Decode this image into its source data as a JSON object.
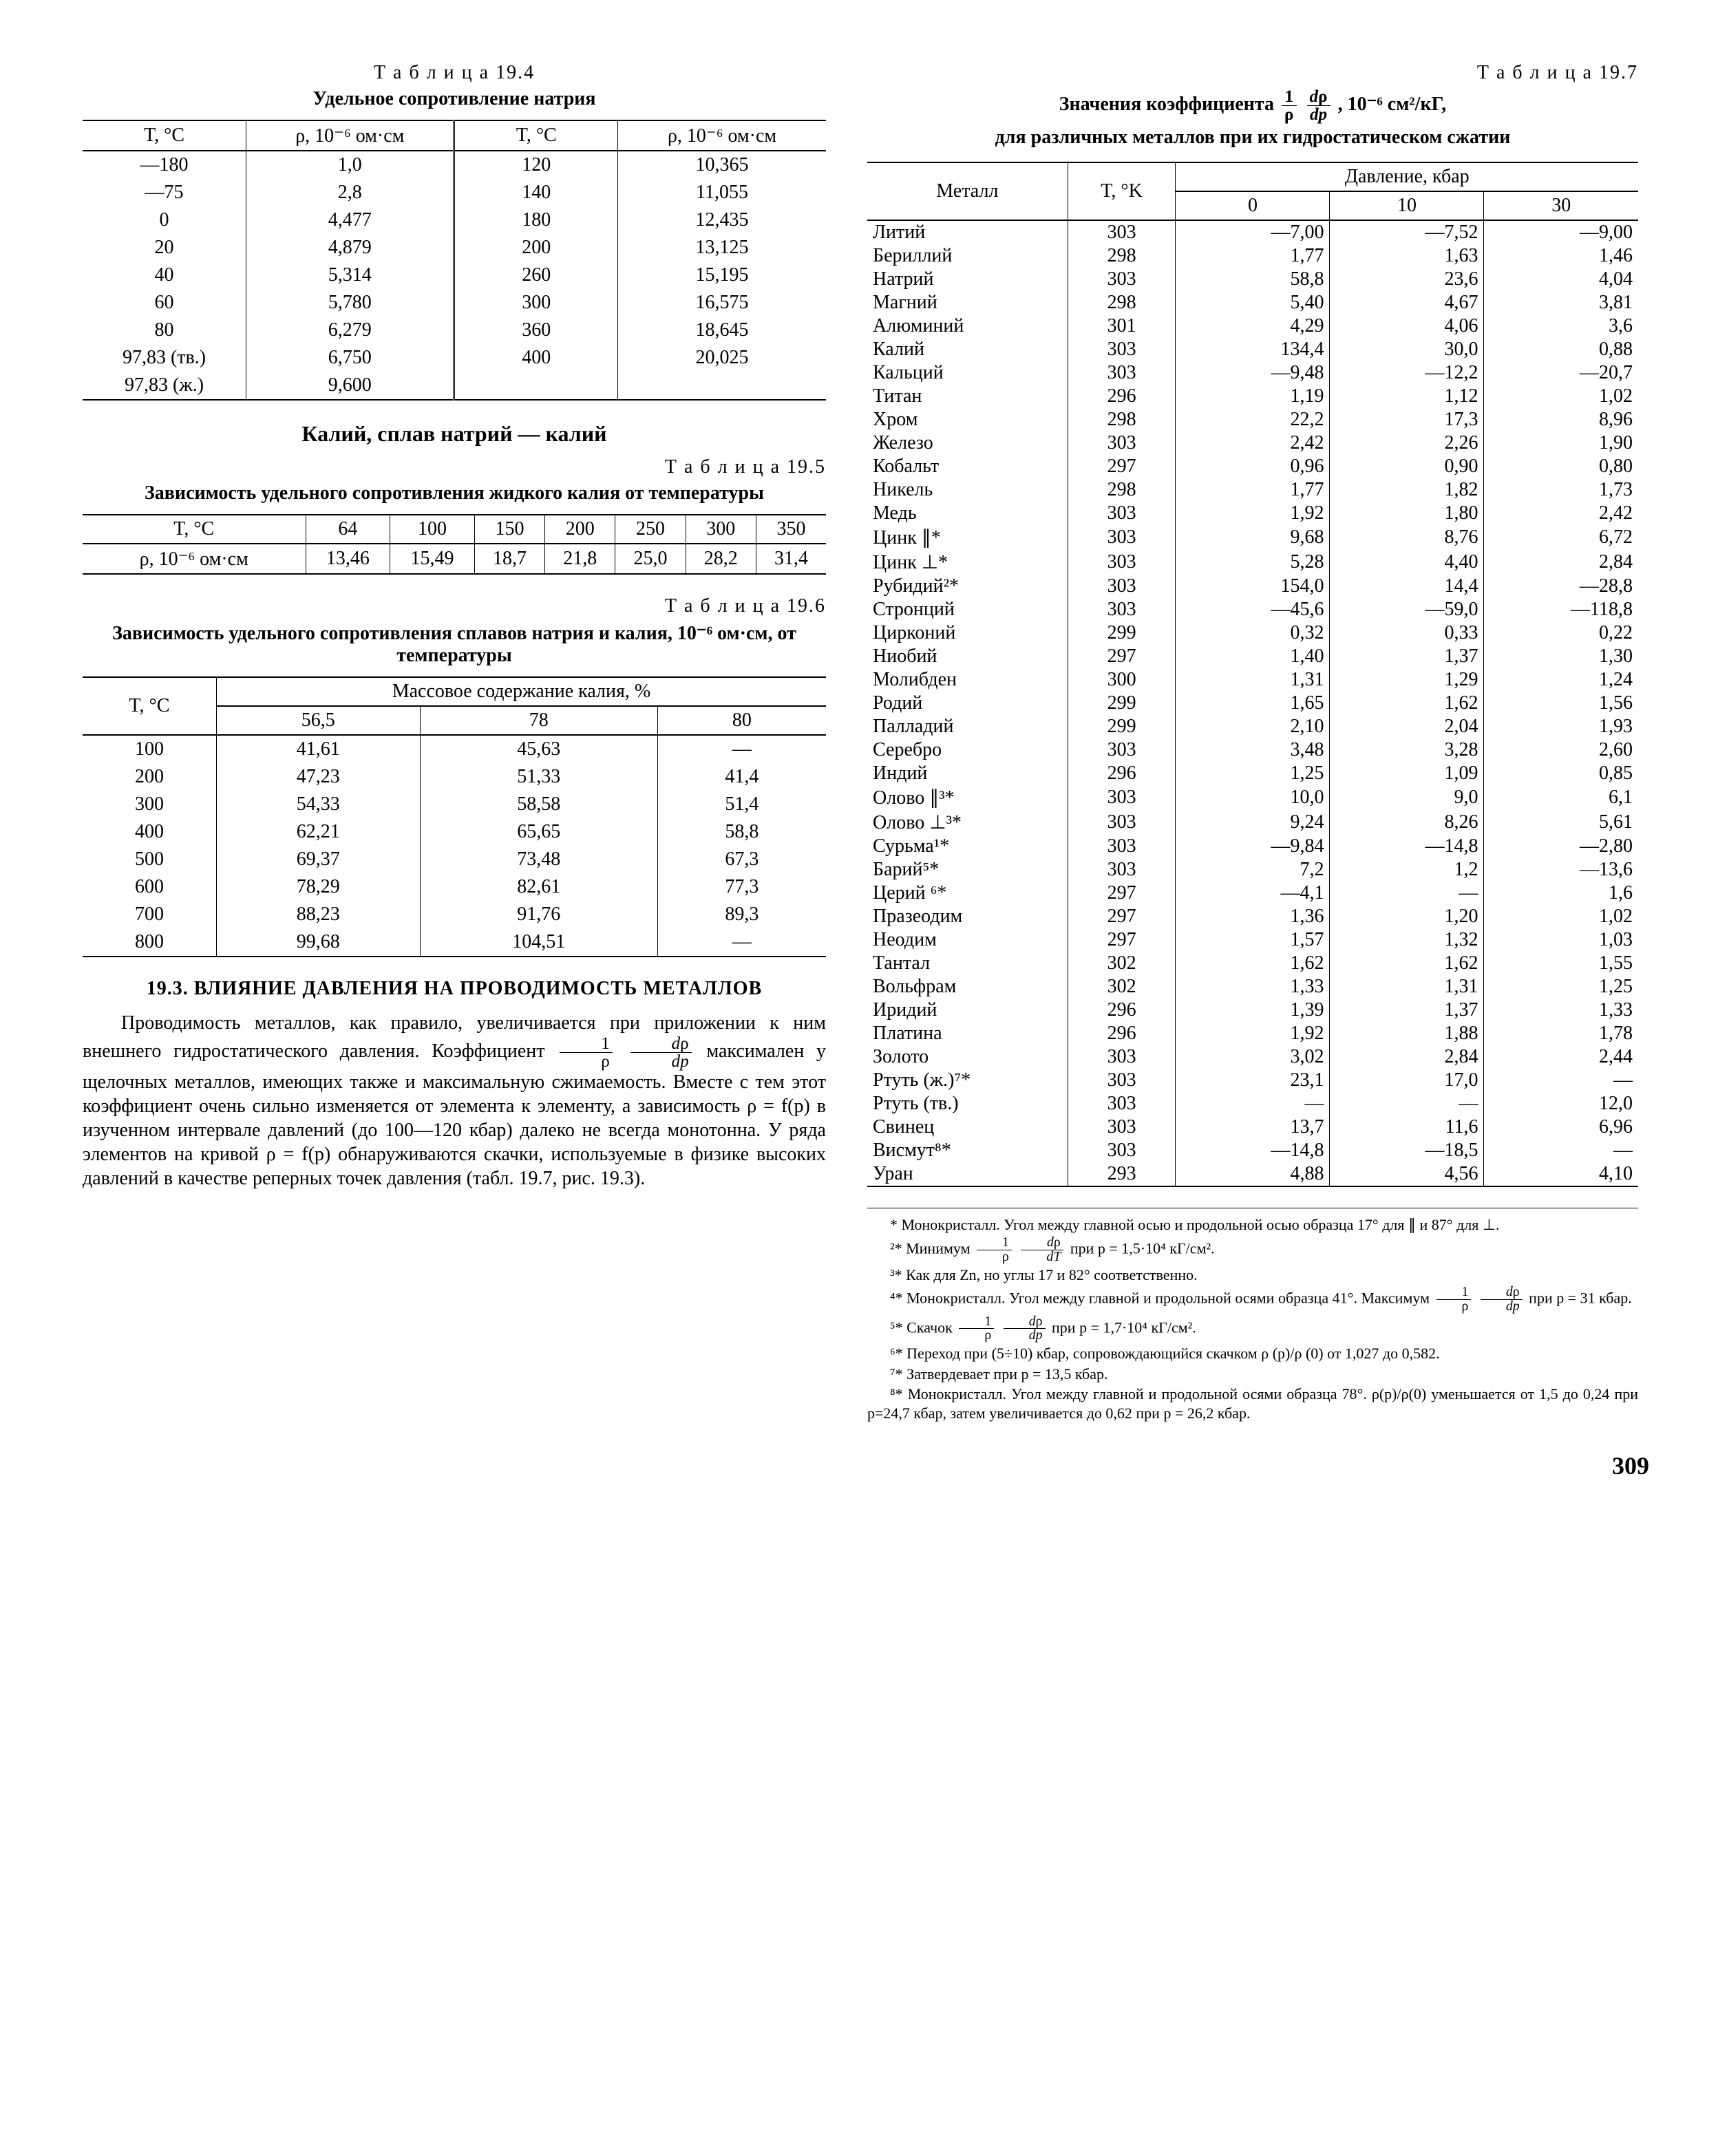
{
  "page_number": "309",
  "left": {
    "t194": {
      "label": "Т а б л и ц а  19.4",
      "title": "Удельное сопротивление натрия",
      "head": [
        "T, °C",
        "ρ, 10⁻⁶ ом·см",
        "T, °C",
        "ρ, 10⁻⁶ ом·см"
      ],
      "rows": [
        [
          "—180",
          "1,0",
          "120",
          "10,365"
        ],
        [
          "—75",
          "2,8",
          "140",
          "11,055"
        ],
        [
          "0",
          "4,477",
          "180",
          "12,435"
        ],
        [
          "20",
          "4,879",
          "200",
          "13,125"
        ],
        [
          "40",
          "5,314",
          "260",
          "15,195"
        ],
        [
          "60",
          "5,780",
          "300",
          "16,575"
        ],
        [
          "80",
          "6,279",
          "360",
          "18,645"
        ],
        [
          "97,83 (тв.)",
          "6,750",
          "400",
          "20,025"
        ],
        [
          "97,83 (ж.)",
          "9,600",
          "",
          ""
        ]
      ]
    },
    "subhead": "Калий, сплав натрий — калий",
    "t195": {
      "label": "Т а б л и ц а  19.5",
      "title": "Зависимость удельного сопротивления жидкого калия от температуры",
      "row_label": "T, °C",
      "row2_label": "ρ, 10⁻⁶ ом·см",
      "cols": [
        "64",
        "100",
        "150",
        "200",
        "250",
        "300",
        "350"
      ],
      "vals": [
        "13,46",
        "15,49",
        "18,7",
        "21,8",
        "25,0",
        "28,2",
        "31,4"
      ]
    },
    "t196": {
      "label": "Т а б л и ц а  19.6",
      "title": "Зависимость удельного сопротивления сплавов натрия и калия, 10⁻⁶ ом·см, от температуры",
      "group_head": "Массовое содержание калия, %",
      "head": [
        "T, °C",
        "56,5",
        "78",
        "80"
      ],
      "rows": [
        [
          "100",
          "41,61",
          "45,63",
          "—"
        ],
        [
          "200",
          "47,23",
          "51,33",
          "41,4"
        ],
        [
          "300",
          "54,33",
          "58,58",
          "51,4"
        ],
        [
          "400",
          "62,21",
          "65,65",
          "58,8"
        ],
        [
          "500",
          "69,37",
          "73,48",
          "67,3"
        ],
        [
          "600",
          "78,29",
          "82,61",
          "77,3"
        ],
        [
          "700",
          "88,23",
          "91,76",
          "89,3"
        ],
        [
          "800",
          "99,68",
          "104,51",
          "—"
        ]
      ]
    },
    "section": {
      "title": "19.3. ВЛИЯНИЕ ДАВЛЕНИЯ НА ПРОВОДИМОСТЬ МЕТАЛЛОВ",
      "p1a": "Проводимость металлов, как правило, увеличивается при приложении к ним внешнего гидростатического дав­ления. Коэффициент ",
      "p1b": " максимален у щелочных ме­таллов, имеющих также и максимальную сжимаемость. Вместе с тем этот коэффициент очень сильно изменяет­ся от элемента к элементу, а зависимость ρ = f(p) в изученном интервале давлений (до 100—120 кбар) далеко не всегда монотонна. У ряда элементов на кри­вой ρ = f(p) обнаруживаются скачки, используемые в физике высоких давлений в качестве реперных точек давления (табл. 19.7, рис. 19.3)."
    }
  },
  "right": {
    "t197": {
      "label": "Т а б л и ц а  19.7",
      "title_a": "Значения коэффициента ",
      "title_b": ", 10⁻⁶ см²/кГ,",
      "title_c": "для различных металлов при их гидростатическом сжатии",
      "group_head": "Давление, кбар",
      "head": [
        "Металл",
        "T, °K",
        "0",
        "10",
        "30"
      ],
      "rows": [
        [
          "Литий",
          "303",
          "—7,00",
          "—7,52",
          "—9,00"
        ],
        [
          "Бериллий",
          "298",
          "1,77",
          "1,63",
          "1,46"
        ],
        [
          "Натрий",
          "303",
          "58,8",
          "23,6",
          "4,04"
        ],
        [
          "Магний",
          "298",
          "5,40",
          "4,67",
          "3,81"
        ],
        [
          "Алюминий",
          "301",
          "4,29",
          "4,06",
          "3,6"
        ],
        [
          "Калий",
          "303",
          "134,4",
          "30,0",
          "0,88"
        ],
        [
          "Кальций",
          "303",
          "—9,48",
          "—12,2",
          "—20,7"
        ],
        [
          "Титан",
          "296",
          "1,19",
          "1,12",
          "1,02"
        ],
        [
          "Хром",
          "298",
          "22,2",
          "17,3",
          "8,96"
        ],
        [
          "Железо",
          "303",
          "2,42",
          "2,26",
          "1,90"
        ],
        [
          "Кобальт",
          "297",
          "0,96",
          "0,90",
          "0,80"
        ],
        [
          "Никель",
          "298",
          "1,77",
          "1,82",
          "1,73"
        ],
        [
          "Медь",
          "303",
          "1,92",
          "1,80",
          "2,42"
        ],
        [
          "Цинк ∥*",
          "303",
          "9,68",
          "8,76",
          "6,72"
        ],
        [
          "Цинк ⊥*",
          "303",
          "5,28",
          "4,40",
          "2,84"
        ],
        [
          "Рубидий²*",
          "303",
          "154,0",
          "14,4",
          "—28,8"
        ],
        [
          "Стронций",
          "303",
          "—45,6",
          "—59,0",
          "—118,8"
        ],
        [
          "Цирконий",
          "299",
          "0,32",
          "0,33",
          "0,22"
        ],
        [
          "Ниобий",
          "297",
          "1,40",
          "1,37",
          "1,30"
        ],
        [
          "Молибден",
          "300",
          "1,31",
          "1,29",
          "1,24"
        ],
        [
          "Родий",
          "299",
          "1,65",
          "1,62",
          "1,56"
        ],
        [
          "Палладий",
          "299",
          "2,10",
          "2,04",
          "1,93"
        ],
        [
          "Серебро",
          "303",
          "3,48",
          "3,28",
          "2,60"
        ],
        [
          "Индий",
          "296",
          "1,25",
          "1,09",
          "0,85"
        ],
        [
          "Олово ∥³*",
          "303",
          "10,0",
          "9,0",
          "6,1"
        ],
        [
          "Олово ⊥³*",
          "303",
          "9,24",
          "8,26",
          "5,61"
        ],
        [
          "Сурьма¹*",
          "303",
          "—9,84",
          "—14,8",
          "—2,80"
        ],
        [
          "Барий⁵*",
          "303",
          "7,2",
          "1,2",
          "—13,6"
        ],
        [
          "Церий ⁶*",
          "297",
          "—4,1",
          "—",
          "1,6"
        ],
        [
          "Празеодим",
          "297",
          "1,36",
          "1,20",
          "1,02"
        ],
        [
          "Неодим",
          "297",
          "1,57",
          "1,32",
          "1,03"
        ],
        [
          "Тантал",
          "302",
          "1,62",
          "1,62",
          "1,55"
        ],
        [
          "Вольфрам",
          "302",
          "1,33",
          "1,31",
          "1,25"
        ],
        [
          "Иридий",
          "296",
          "1,39",
          "1,37",
          "1,33"
        ],
        [
          "Платина",
          "296",
          "1,92",
          "1,88",
          "1,78"
        ],
        [
          "Золото",
          "303",
          "3,02",
          "2,84",
          "2,44"
        ],
        [
          "Ртуть (ж.)⁷*",
          "303",
          "23,1",
          "17,0",
          "—"
        ],
        [
          "Ртуть (тв.)",
          "303",
          "—",
          "—",
          "12,0"
        ],
        [
          "Свинец",
          "303",
          "13,7",
          "11,6",
          "6,96"
        ],
        [
          "Висмут⁸*",
          "303",
          "—14,8",
          "—18,5",
          "—"
        ],
        [
          "Уран",
          "293",
          "4,88",
          "4,56",
          "4,10"
        ]
      ]
    },
    "footnotes": {
      "f1": "* Монокристалл. Угол между главной осью и продольной осью образца 17° для ∥ и 87° для ⊥.",
      "f2a": "²* Минимум ",
      "f2b": " при p = 1,5·10⁴ кГ/см².",
      "f3": "³* Как для Zn, но углы 17 и 82° соответственно.",
      "f4a": "⁴* Монокристалл. Угол между главной и продольной осями образца 41°. Максимум ",
      "f4b": " при p = 31 кбар.",
      "f5a": "⁵* Скачок ",
      "f5b": " при p = 1,7·10⁴ кГ/см².",
      "f6": "⁶* Переход при (5÷10) кбар, сопровождающийся скачком ρ (p)/ρ (0) от 1,027 до 0,582.",
      "f7": "⁷* Затвердевает при p = 13,5 кбар.",
      "f8": "⁸* Монокристалл. Угол между главной и продольной осями образца 78°. ρ(p)/ρ(0) уменьшается от 1,5 до 0,24 при p=24,7 кбар, затем увеличивается до 0,62 при p = 26,2 кбар."
    }
  }
}
